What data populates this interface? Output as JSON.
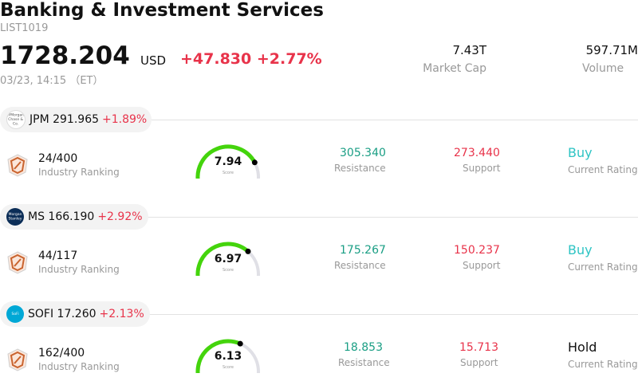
{
  "header": {
    "title": "Banking & Investment Services",
    "code": "LIST1019",
    "price": "1728.204",
    "currency": "USD",
    "change": "+47.830",
    "change_pct": "+2.77%",
    "time": "03/23, 14:15 （ET）",
    "market_cap_value": "7.43T",
    "market_cap_label": "Market Cap",
    "volume_value": "597.71M",
    "volume_label": "Volume"
  },
  "labels": {
    "industry_ranking": "Industry Ranking",
    "resistance": "Resistance",
    "support": "Support",
    "current_rating": "Current Rating",
    "score": "Score"
  },
  "stocks": [
    {
      "symbol": "JPM",
      "price": "291.965",
      "change_pct": "+1.89%",
      "logo_icon": "jpmorgan-logo-icon",
      "logo_text": "JPMorgan Chase & Co.",
      "rank": "24/400",
      "score": "7.94",
      "score_fraction": 0.794,
      "resistance": "305.340",
      "support": "273.440",
      "rating": "Buy",
      "rating_color": "#2ec4c4"
    },
    {
      "symbol": "MS",
      "price": "166.190",
      "change_pct": "+2.92%",
      "logo_icon": "morgan-stanley-logo-icon",
      "logo_text": "Morgan Stanley",
      "rank": "44/117",
      "score": "6.97",
      "score_fraction": 0.697,
      "resistance": "175.267",
      "support": "150.237",
      "rating": "Buy",
      "rating_color": "#2ec4c4"
    },
    {
      "symbol": "SOFI",
      "price": "17.260",
      "change_pct": "+2.13%",
      "logo_icon": "sofi-logo-icon",
      "logo_text": "SoFi",
      "rank": "162/400",
      "score": "6.13",
      "score_fraction": 0.613,
      "resistance": "18.853",
      "support": "15.713",
      "rating": "Hold",
      "rating_color": "#111111"
    }
  ]
}
